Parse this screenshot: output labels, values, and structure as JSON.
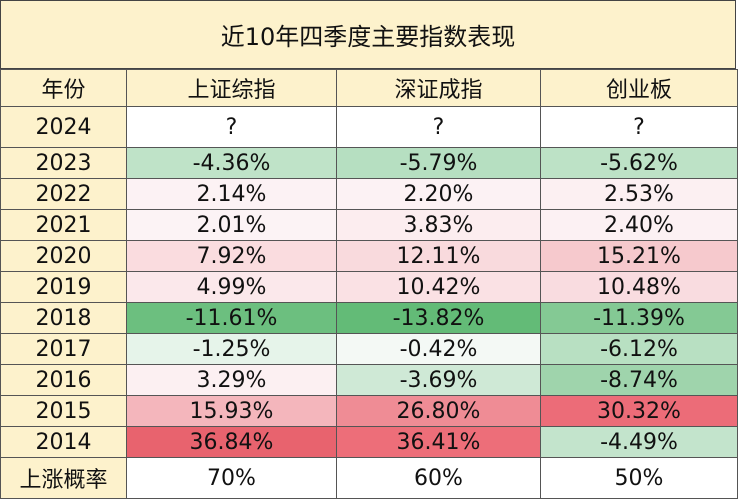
{
  "title": "近10年四季度主要指数表现",
  "headers": [
    "年份",
    "上证综指",
    "深证成指",
    "创业板"
  ],
  "rows": [
    {
      "year": "2024",
      "cells": [
        {
          "text": "?",
          "bg": "#ffffff"
        },
        {
          "text": "?",
          "bg": "#ffffff"
        },
        {
          "text": "?",
          "bg": "#ffffff"
        }
      ]
    },
    {
      "year": "2023",
      "cells": [
        {
          "text": "-4.36%",
          "bg": "#bfe3c8"
        },
        {
          "text": "-5.79%",
          "bg": "#b6dfc1"
        },
        {
          "text": "-5.62%",
          "bg": "#bde2c6"
        }
      ]
    },
    {
      "year": "2022",
      "cells": [
        {
          "text": "2.14%",
          "bg": "#fcf2f4"
        },
        {
          "text": "2.20%",
          "bg": "#fcf2f4"
        },
        {
          "text": "2.53%",
          "bg": "#fcf0f2"
        }
      ]
    },
    {
      "year": "2021",
      "cells": [
        {
          "text": "2.01%",
          "bg": "#fcf3f5"
        },
        {
          "text": "3.83%",
          "bg": "#fcedef"
        },
        {
          "text": "2.40%",
          "bg": "#fcf1f3"
        }
      ]
    },
    {
      "year": "2020",
      "cells": [
        {
          "text": "7.92%",
          "bg": "#fadcdf"
        },
        {
          "text": "12.11%",
          "bg": "#f9dadd"
        },
        {
          "text": "15.21%",
          "bg": "#f6c9cd"
        }
      ]
    },
    {
      "year": "2019",
      "cells": [
        {
          "text": "4.99%",
          "bg": "#fbe8eb"
        },
        {
          "text": "10.42%",
          "bg": "#fae1e4"
        },
        {
          "text": "10.48%",
          "bg": "#f9dce0"
        }
      ]
    },
    {
      "year": "2018",
      "cells": [
        {
          "text": "-11.61%",
          "bg": "#6cbf7f"
        },
        {
          "text": "-13.82%",
          "bg": "#63bb77"
        },
        {
          "text": "-11.39%",
          "bg": "#84c994"
        }
      ]
    },
    {
      "year": "2017",
      "cells": [
        {
          "text": "-1.25%",
          "bg": "#e6f4ea"
        },
        {
          "text": "-0.42%",
          "bg": "#f4f9f5"
        },
        {
          "text": "-6.12%",
          "bg": "#b8e0c2"
        }
      ]
    },
    {
      "year": "2016",
      "cells": [
        {
          "text": "3.29%",
          "bg": "#fcf0f2"
        },
        {
          "text": "-3.69%",
          "bg": "#cfe9d6"
        },
        {
          "text": "-8.74%",
          "bg": "#9fd4ac"
        }
      ]
    },
    {
      "year": "2015",
      "cells": [
        {
          "text": "15.93%",
          "bg": "#f4b6bc"
        },
        {
          "text": "26.80%",
          "bg": "#ef8c95"
        },
        {
          "text": "30.32%",
          "bg": "#ec6c78"
        }
      ]
    },
    {
      "year": "2014",
      "cells": [
        {
          "text": "36.84%",
          "bg": "#e8636e"
        },
        {
          "text": "36.41%",
          "bg": "#ed6e79"
        },
        {
          "text": "-4.49%",
          "bg": "#c3e4cc"
        }
      ]
    },
    {
      "year": "上涨概率",
      "cells": [
        {
          "text": "70%",
          "bg": "#ffffff"
        },
        {
          "text": "60%",
          "bg": "#ffffff"
        },
        {
          "text": "50%",
          "bg": "#ffffff"
        }
      ]
    }
  ]
}
